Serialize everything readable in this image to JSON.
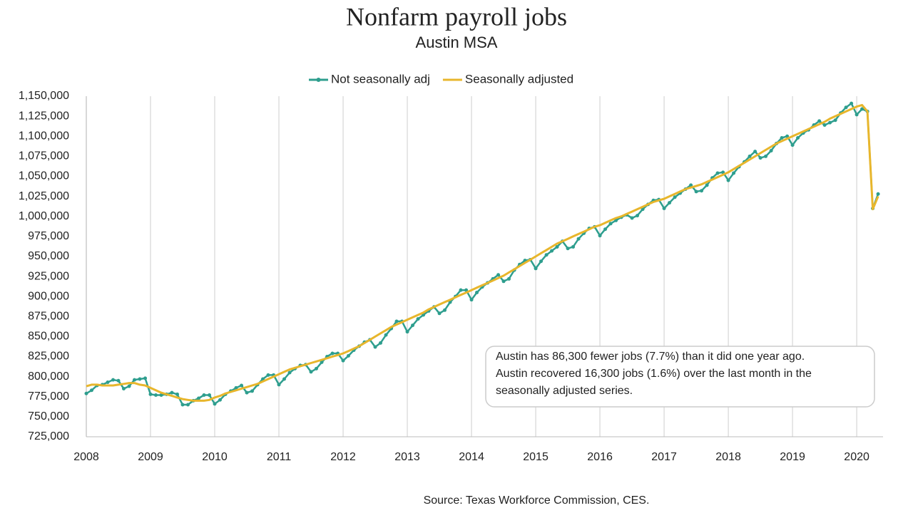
{
  "chart_data": {
    "type": "line",
    "title": "Nonfarm payroll jobs",
    "subtitle": "Austin MSA",
    "x": [
      2008,
      2008.083,
      2008.167,
      2008.25,
      2008.333,
      2008.417,
      2008.5,
      2008.583,
      2008.667,
      2008.75,
      2008.833,
      2008.917,
      2009,
      2009.083,
      2009.167,
      2009.25,
      2009.333,
      2009.417,
      2009.5,
      2009.583,
      2009.667,
      2009.75,
      2009.833,
      2009.917,
      2010,
      2010.083,
      2010.167,
      2010.25,
      2010.333,
      2010.417,
      2010.5,
      2010.583,
      2010.667,
      2010.75,
      2010.833,
      2010.917,
      2011,
      2011.083,
      2011.167,
      2011.25,
      2011.333,
      2011.417,
      2011.5,
      2011.583,
      2011.667,
      2011.75,
      2011.833,
      2011.917,
      2012,
      2012.083,
      2012.167,
      2012.25,
      2012.333,
      2012.417,
      2012.5,
      2012.583,
      2012.667,
      2012.75,
      2012.833,
      2012.917,
      2013,
      2013.083,
      2013.167,
      2013.25,
      2013.333,
      2013.417,
      2013.5,
      2013.583,
      2013.667,
      2013.75,
      2013.833,
      2013.917,
      2014,
      2014.083,
      2014.167,
      2014.25,
      2014.333,
      2014.417,
      2014.5,
      2014.583,
      2014.667,
      2014.75,
      2014.833,
      2014.917,
      2015,
      2015.083,
      2015.167,
      2015.25,
      2015.333,
      2015.417,
      2015.5,
      2015.583,
      2015.667,
      2015.75,
      2015.833,
      2015.917,
      2016,
      2016.083,
      2016.167,
      2016.25,
      2016.333,
      2016.417,
      2016.5,
      2016.583,
      2016.667,
      2016.75,
      2016.833,
      2016.917,
      2017,
      2017.083,
      2017.167,
      2017.25,
      2017.333,
      2017.417,
      2017.5,
      2017.583,
      2017.667,
      2017.75,
      2017.833,
      2017.917,
      2018,
      2018.083,
      2018.167,
      2018.25,
      2018.333,
      2018.417,
      2018.5,
      2018.583,
      2018.667,
      2018.75,
      2018.833,
      2018.917,
      2019,
      2019.083,
      2019.167,
      2019.25,
      2019.333,
      2019.417,
      2019.5,
      2019.583,
      2019.667,
      2019.75,
      2019.833,
      2019.917,
      2020,
      2020.083,
      2020.167,
      2020.25,
      2020.333
    ],
    "series": [
      {
        "name": "Not seasonally adj",
        "color": "#2e9e8e",
        "markers": true,
        "values": [
          779000,
          783000,
          789000,
          790000,
          793000,
          796000,
          795000,
          785000,
          788000,
          796000,
          797000,
          798000,
          778000,
          777000,
          777000,
          778000,
          780000,
          778000,
          765000,
          765000,
          770000,
          773000,
          777000,
          777000,
          766000,
          771000,
          778000,
          782000,
          786000,
          789000,
          780000,
          782000,
          790000,
          797000,
          802000,
          802000,
          790000,
          797000,
          805000,
          810000,
          814000,
          815000,
          806000,
          810000,
          818000,
          825000,
          829000,
          829000,
          820000,
          826000,
          833000,
          838000,
          843000,
          846000,
          837000,
          842000,
          852000,
          860000,
          869000,
          869000,
          856000,
          864000,
          872000,
          877000,
          882000,
          887000,
          879000,
          883000,
          893000,
          900000,
          908000,
          908000,
          896000,
          905000,
          912000,
          917000,
          922000,
          927000,
          919000,
          922000,
          933000,
          940000,
          945000,
          946000,
          935000,
          944000,
          952000,
          957000,
          962000,
          969000,
          960000,
          962000,
          972000,
          979000,
          985000,
          987000,
          976000,
          984000,
          991000,
          995000,
          999000,
          1002000,
          998000,
          1001000,
          1009000,
          1015000,
          1020000,
          1021000,
          1010000,
          1017000,
          1024000,
          1029000,
          1034000,
          1039000,
          1031000,
          1032000,
          1039000,
          1048000,
          1054000,
          1055000,
          1045000,
          1054000,
          1062000,
          1068000,
          1075000,
          1081000,
          1073000,
          1075000,
          1082000,
          1091000,
          1098000,
          1100000,
          1089000,
          1098000,
          1104000,
          1108000,
          1114000,
          1119000,
          1114000,
          1117000,
          1120000,
          1129000,
          1136000,
          1141000,
          1127000,
          1134000,
          1131000,
          1010000,
          1028000
        ]
      },
      {
        "name": "Seasonally adjusted",
        "color": "#e8b62c",
        "markers": false,
        "values": [
          788000,
          790000,
          790000,
          789000,
          789000,
          789000,
          790000,
          791000,
          792000,
          792000,
          790000,
          789000,
          786000,
          783000,
          780000,
          778000,
          776000,
          774000,
          772000,
          771000,
          770000,
          770000,
          770000,
          771000,
          774000,
          776000,
          779000,
          781000,
          783000,
          785000,
          787000,
          789000,
          791000,
          794000,
          797000,
          800000,
          803000,
          806000,
          809000,
          811000,
          813000,
          815000,
          817000,
          819000,
          821000,
          823000,
          825000,
          827000,
          829000,
          832000,
          835000,
          838000,
          842000,
          846000,
          850000,
          854000,
          858000,
          862000,
          865000,
          868000,
          871000,
          874000,
          877000,
          880000,
          884000,
          887000,
          890000,
          893000,
          896000,
          899000,
          902000,
          905000,
          908000,
          911000,
          914000,
          917000,
          920000,
          923000,
          926000,
          930000,
          934000,
          938000,
          942000,
          946000,
          950000,
          954000,
          958000,
          962000,
          966000,
          969000,
          972000,
          975000,
          978000,
          981000,
          984000,
          987000,
          989000,
          992000,
          995000,
          998000,
          1000000,
          1003000,
          1006000,
          1009000,
          1012000,
          1015000,
          1018000,
          1020000,
          1022000,
          1025000,
          1028000,
          1031000,
          1034000,
          1036000,
          1038000,
          1040000,
          1043000,
          1046000,
          1049000,
          1052000,
          1055000,
          1059000,
          1063000,
          1067000,
          1071000,
          1075000,
          1079000,
          1083000,
          1087000,
          1091000,
          1094000,
          1097000,
          1100000,
          1103000,
          1106000,
          1109000,
          1112000,
          1115000,
          1118000,
          1122000,
          1125000,
          1128000,
          1131000,
          1134000,
          1137000,
          1139000,
          1131000,
          1009000,
          1025000
        ]
      }
    ],
    "xlim": [
      2008,
      2020.41
    ],
    "xticks": [
      2008,
      2009,
      2010,
      2011,
      2012,
      2013,
      2014,
      2015,
      2016,
      2017,
      2018,
      2019,
      2020
    ],
    "ylim": [
      725000,
      1150000
    ],
    "yticks": [
      {
        "value": 725000,
        "label": "725,000"
      },
      {
        "value": 750000,
        "label": "750,000"
      },
      {
        "value": 775000,
        "label": "775,000"
      },
      {
        "value": 800000,
        "label": "800,000"
      },
      {
        "value": 825000,
        "label": "825,000"
      },
      {
        "value": 850000,
        "label": "850,000"
      },
      {
        "value": 875000,
        "label": "875,000"
      },
      {
        "value": 900000,
        "label": "900,000"
      },
      {
        "value": 925000,
        "label": "925,000"
      },
      {
        "value": 950000,
        "label": "950,000"
      },
      {
        "value": 975000,
        "label": "975,000"
      },
      {
        "value": 1000000,
        "label": "1,000,000"
      },
      {
        "value": 1025000,
        "label": "1,025,000"
      },
      {
        "value": 1050000,
        "label": "1,050,000"
      },
      {
        "value": 1075000,
        "label": "1,075,000"
      },
      {
        "value": 1100000,
        "label": "1,100,000"
      },
      {
        "value": 1125000,
        "label": "1,125,000"
      },
      {
        "value": 1150000,
        "label": "1,150,000"
      }
    ],
    "grid": "x",
    "legend": "top",
    "annotation": [
      "Austin has 86,300 fewer jobs (7.7%) than it did one year ago.",
      "Austin recovered 16,300 jobs (1.6%) over the last month in the",
      "seasonally adjusted series."
    ],
    "source": "Source: Texas Workforce Commission, CES."
  }
}
